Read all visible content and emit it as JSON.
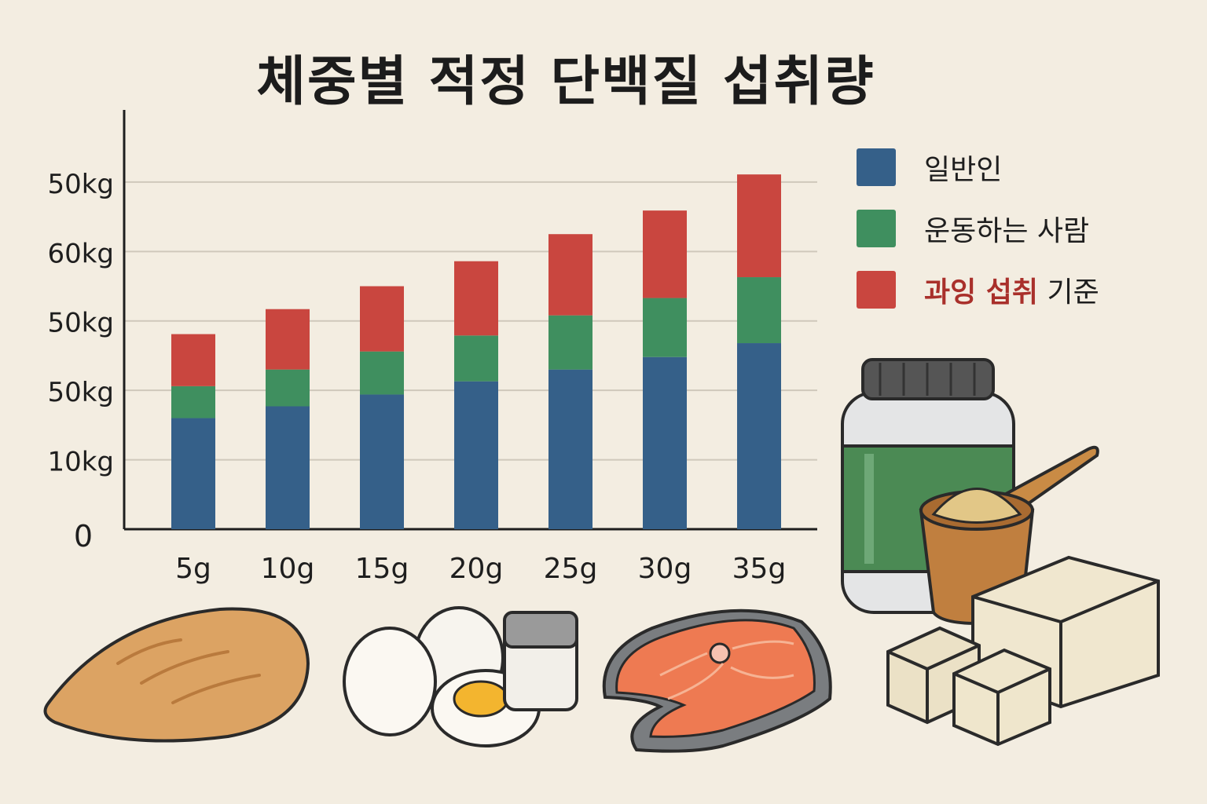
{
  "title": "체중별 적정 단백질 섭취량",
  "colors": {
    "general": "#356089",
    "active": "#3f8f5f",
    "excess": "#c9463f",
    "grid": "#cfc8bb",
    "axis": "#1e1e1e"
  },
  "legend": [
    {
      "color": "#356089",
      "label": "일반인"
    },
    {
      "color": "#3f8f5f",
      "label": "운동하는 사람"
    },
    {
      "color": "#c9463f",
      "label_highlight": "과잉 섭취",
      "label_rest": " 기준"
    }
  ],
  "chart_data": {
    "type": "bar",
    "stacked": true,
    "categories": [
      "5g",
      "10g",
      "15g",
      "20g",
      "25g",
      "30g",
      "35g"
    ],
    "y_tick_labels": [
      "0",
      "10kg",
      "50kg",
      "50kg",
      "60kg",
      "50kg"
    ],
    "series": [
      {
        "name": "일반인",
        "values": [
          1.6,
          1.77,
          1.94,
          2.13,
          2.3,
          2.48,
          2.68
        ]
      },
      {
        "name": "운동하는 사람",
        "values": [
          0.46,
          0.53,
          0.62,
          0.66,
          0.78,
          0.85,
          0.95
        ]
      },
      {
        "name": "과잉 섭취 기준",
        "values": [
          0.75,
          0.87,
          0.94,
          1.07,
          1.17,
          1.26,
          1.48
        ]
      }
    ],
    "ylim": [
      0,
      5.7
    ],
    "grid": true,
    "legend_position": "right"
  },
  "illustrations": [
    "chicken-breast",
    "eggs",
    "salt-shaker",
    "salmon-steak",
    "protein-powder-jar",
    "protein-scoop-cup",
    "tofu-blocks"
  ]
}
